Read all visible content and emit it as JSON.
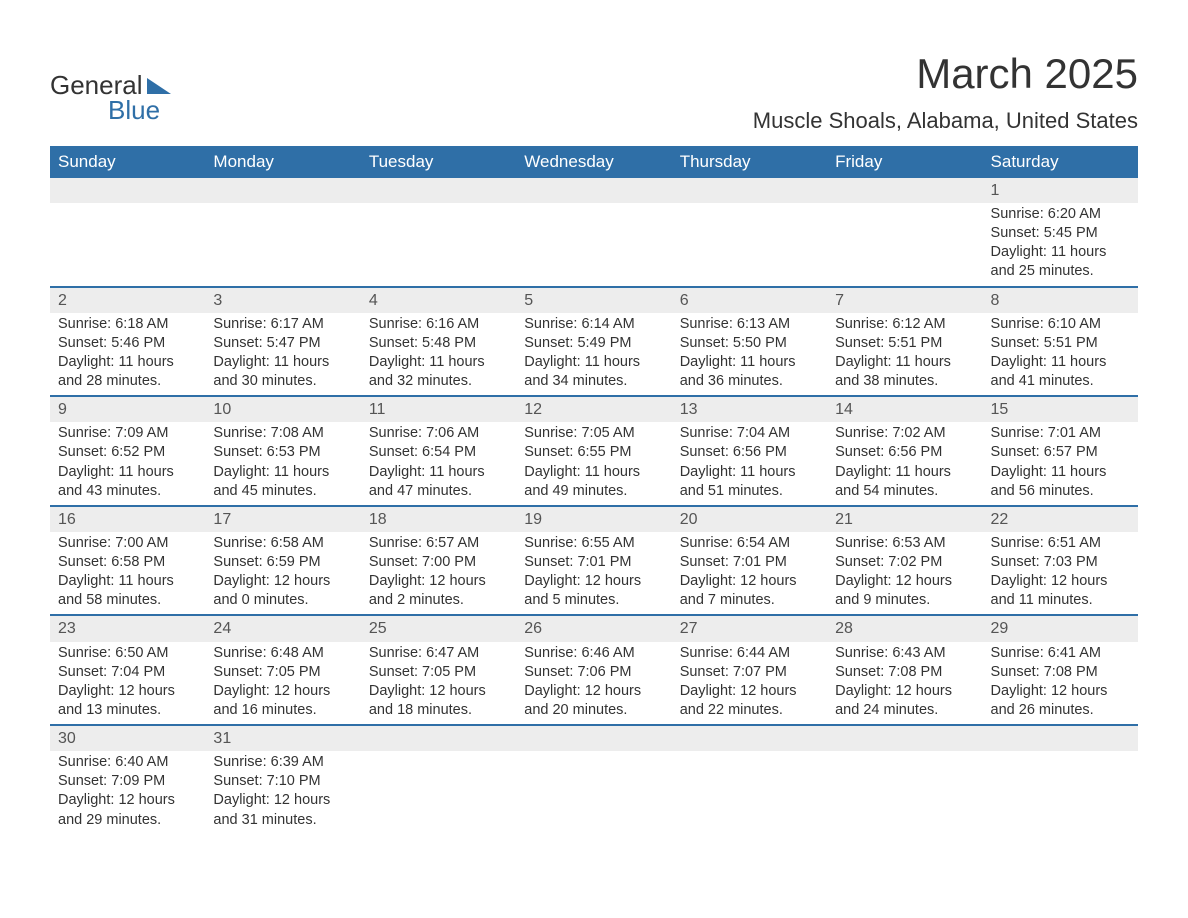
{
  "logo": {
    "line1": "General",
    "line2": "Blue"
  },
  "title": "March 2025",
  "location": "Muscle Shoals, Alabama, United States",
  "columns": [
    "Sunday",
    "Monday",
    "Tuesday",
    "Wednesday",
    "Thursday",
    "Friday",
    "Saturday"
  ],
  "colors": {
    "header_bg": "#2f6fa7",
    "header_text": "#ffffff",
    "daynum_bg": "#ededed",
    "row_border": "#2f6fa7",
    "text": "#333333",
    "background": "#ffffff"
  },
  "weeks": [
    [
      null,
      null,
      null,
      null,
      null,
      null,
      {
        "n": "1",
        "sunrise": "6:20 AM",
        "sunset": "5:45 PM",
        "daylight": "11 hours and 25 minutes."
      }
    ],
    [
      {
        "n": "2",
        "sunrise": "6:18 AM",
        "sunset": "5:46 PM",
        "daylight": "11 hours and 28 minutes."
      },
      {
        "n": "3",
        "sunrise": "6:17 AM",
        "sunset": "5:47 PM",
        "daylight": "11 hours and 30 minutes."
      },
      {
        "n": "4",
        "sunrise": "6:16 AM",
        "sunset": "5:48 PM",
        "daylight": "11 hours and 32 minutes."
      },
      {
        "n": "5",
        "sunrise": "6:14 AM",
        "sunset": "5:49 PM",
        "daylight": "11 hours and 34 minutes."
      },
      {
        "n": "6",
        "sunrise": "6:13 AM",
        "sunset": "5:50 PM",
        "daylight": "11 hours and 36 minutes."
      },
      {
        "n": "7",
        "sunrise": "6:12 AM",
        "sunset": "5:51 PM",
        "daylight": "11 hours and 38 minutes."
      },
      {
        "n": "8",
        "sunrise": "6:10 AM",
        "sunset": "5:51 PM",
        "daylight": "11 hours and 41 minutes."
      }
    ],
    [
      {
        "n": "9",
        "sunrise": "7:09 AM",
        "sunset": "6:52 PM",
        "daylight": "11 hours and 43 minutes."
      },
      {
        "n": "10",
        "sunrise": "7:08 AM",
        "sunset": "6:53 PM",
        "daylight": "11 hours and 45 minutes."
      },
      {
        "n": "11",
        "sunrise": "7:06 AM",
        "sunset": "6:54 PM",
        "daylight": "11 hours and 47 minutes."
      },
      {
        "n": "12",
        "sunrise": "7:05 AM",
        "sunset": "6:55 PM",
        "daylight": "11 hours and 49 minutes."
      },
      {
        "n": "13",
        "sunrise": "7:04 AM",
        "sunset": "6:56 PM",
        "daylight": "11 hours and 51 minutes."
      },
      {
        "n": "14",
        "sunrise": "7:02 AM",
        "sunset": "6:56 PM",
        "daylight": "11 hours and 54 minutes."
      },
      {
        "n": "15",
        "sunrise": "7:01 AM",
        "sunset": "6:57 PM",
        "daylight": "11 hours and 56 minutes."
      }
    ],
    [
      {
        "n": "16",
        "sunrise": "7:00 AM",
        "sunset": "6:58 PM",
        "daylight": "11 hours and 58 minutes."
      },
      {
        "n": "17",
        "sunrise": "6:58 AM",
        "sunset": "6:59 PM",
        "daylight": "12 hours and 0 minutes."
      },
      {
        "n": "18",
        "sunrise": "6:57 AM",
        "sunset": "7:00 PM",
        "daylight": "12 hours and 2 minutes."
      },
      {
        "n": "19",
        "sunrise": "6:55 AM",
        "sunset": "7:01 PM",
        "daylight": "12 hours and 5 minutes."
      },
      {
        "n": "20",
        "sunrise": "6:54 AM",
        "sunset": "7:01 PM",
        "daylight": "12 hours and 7 minutes."
      },
      {
        "n": "21",
        "sunrise": "6:53 AM",
        "sunset": "7:02 PM",
        "daylight": "12 hours and 9 minutes."
      },
      {
        "n": "22",
        "sunrise": "6:51 AM",
        "sunset": "7:03 PM",
        "daylight": "12 hours and 11 minutes."
      }
    ],
    [
      {
        "n": "23",
        "sunrise": "6:50 AM",
        "sunset": "7:04 PM",
        "daylight": "12 hours and 13 minutes."
      },
      {
        "n": "24",
        "sunrise": "6:48 AM",
        "sunset": "7:05 PM",
        "daylight": "12 hours and 16 minutes."
      },
      {
        "n": "25",
        "sunrise": "6:47 AM",
        "sunset": "7:05 PM",
        "daylight": "12 hours and 18 minutes."
      },
      {
        "n": "26",
        "sunrise": "6:46 AM",
        "sunset": "7:06 PM",
        "daylight": "12 hours and 20 minutes."
      },
      {
        "n": "27",
        "sunrise": "6:44 AM",
        "sunset": "7:07 PM",
        "daylight": "12 hours and 22 minutes."
      },
      {
        "n": "28",
        "sunrise": "6:43 AM",
        "sunset": "7:08 PM",
        "daylight": "12 hours and 24 minutes."
      },
      {
        "n": "29",
        "sunrise": "6:41 AM",
        "sunset": "7:08 PM",
        "daylight": "12 hours and 26 minutes."
      }
    ],
    [
      {
        "n": "30",
        "sunrise": "6:40 AM",
        "sunset": "7:09 PM",
        "daylight": "12 hours and 29 minutes."
      },
      {
        "n": "31",
        "sunrise": "6:39 AM",
        "sunset": "7:10 PM",
        "daylight": "12 hours and 31 minutes."
      },
      null,
      null,
      null,
      null,
      null
    ]
  ],
  "labels": {
    "sunrise_prefix": "Sunrise: ",
    "sunset_prefix": "Sunset: ",
    "daylight_prefix": "Daylight: "
  }
}
